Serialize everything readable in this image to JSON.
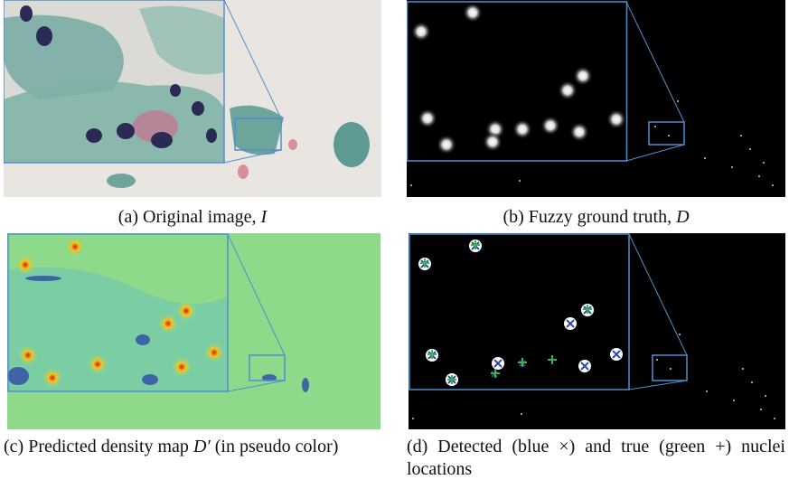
{
  "figure": {
    "panels": [
      {
        "caption": {
          "text": "(a) Original image, ",
          "math": "I"
        }
      },
      {
        "caption": {
          "text": "(b) Fuzzy ground truth, ",
          "math": "D"
        }
      },
      {
        "caption": {
          "text": "(c) Predicted density map ",
          "math": "D′",
          "rest": "(in pseudo color)"
        }
      },
      {
        "caption": {
          "text": "(d) Detected (blue ×) and true (green +) nuclei locations"
        }
      }
    ]
  }
}
